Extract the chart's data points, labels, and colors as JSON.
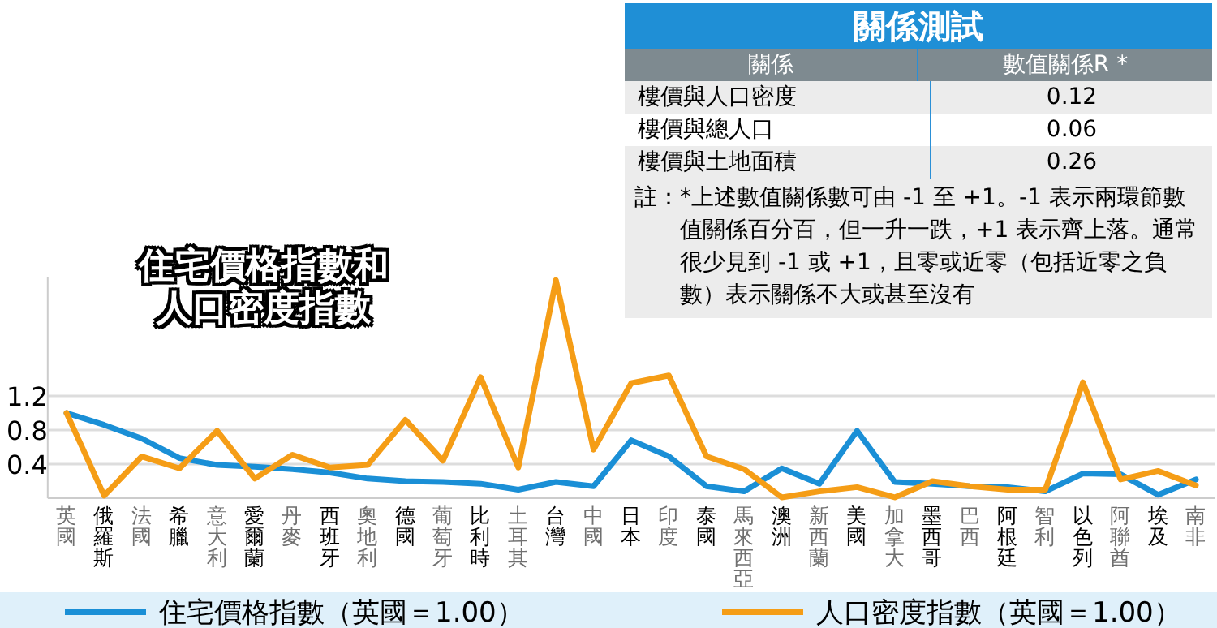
{
  "chart_data": {
    "type": "line",
    "title": "住宅價格指數和人口密度指數",
    "categories": [
      "英國",
      "俄羅斯",
      "法國",
      "希臘",
      "意大利",
      "愛爾蘭",
      "丹麥",
      "西班牙",
      "奧地利",
      "德國",
      "葡萄牙",
      "比利時",
      "土耳其",
      "台灣",
      "中國",
      "日本",
      "印度",
      "泰國",
      "馬來西亞",
      "澳洲",
      "新西蘭",
      "美國",
      "加拿大",
      "墨西哥",
      "巴西",
      "阿根廷",
      "智利",
      "以色列",
      "阿聯酋",
      "埃及",
      "南非"
    ],
    "series": [
      {
        "name": "住宅價格指數（英國＝1.00）",
        "color": "#1a8fd6",
        "values": [
          1.0,
          0.86,
          0.7,
          0.47,
          0.39,
          0.37,
          0.34,
          0.3,
          0.23,
          0.2,
          0.19,
          0.17,
          0.1,
          0.19,
          0.14,
          0.68,
          0.49,
          0.14,
          0.08,
          0.35,
          0.17,
          0.79,
          0.19,
          0.17,
          0.14,
          0.13,
          0.08,
          0.29,
          0.28,
          0.04,
          0.22
        ]
      },
      {
        "name": "人口密度指數（英國＝1.00）",
        "color": "#f59d16",
        "values": [
          1.0,
          0.03,
          0.49,
          0.35,
          0.79,
          0.23,
          0.51,
          0.36,
          0.39,
          0.92,
          0.44,
          1.42,
          0.36,
          2.56,
          0.57,
          1.35,
          1.44,
          0.49,
          0.34,
          0.01,
          0.08,
          0.13,
          0.01,
          0.2,
          0.14,
          0.1,
          0.1,
          1.36,
          0.22,
          0.32,
          0.15
        ]
      }
    ],
    "ylim": [
      0,
      2.6
    ],
    "yticks": [
      0.4,
      0.8,
      1.2
    ],
    "grid": "y",
    "legend": "bottom",
    "line_style": "solid",
    "marker": "none",
    "annotations": [
      "關係測試",
      "關係",
      "數值關係R *",
      "樓價與人口密度",
      "0.12",
      "樓價與總人口",
      "0.06",
      "樓價與土地面積",
      "0.26",
      "註：*上述數值關係數可由 -1 至 +1。-1 表示兩環節數值關係百分百，但一升一跌，+1 表示齊上落。通常很少見到 -1 或 +1，且零或近零（包括近零之負數）表示關係不大或甚至沒有"
    ]
  }
}
